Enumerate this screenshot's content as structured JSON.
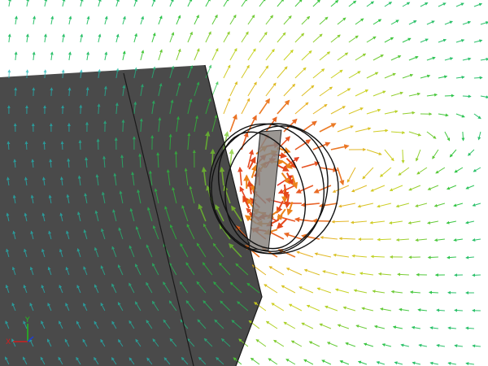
{
  "viewport": {
    "background": "#ffffff",
    "block_color": "#4a4a4a",
    "plate_color": "#8a8580"
  },
  "color_map": [
    "#1a2bd6",
    "#1fb3e0",
    "#22c23a",
    "#c8d21a",
    "#f0a21a",
    "#e0201a"
  ],
  "triad": {
    "x_label": "X",
    "y_label": "Y",
    "x_color": "#d02020",
    "y_color": "#20c020",
    "z_color": "#2040d0"
  }
}
